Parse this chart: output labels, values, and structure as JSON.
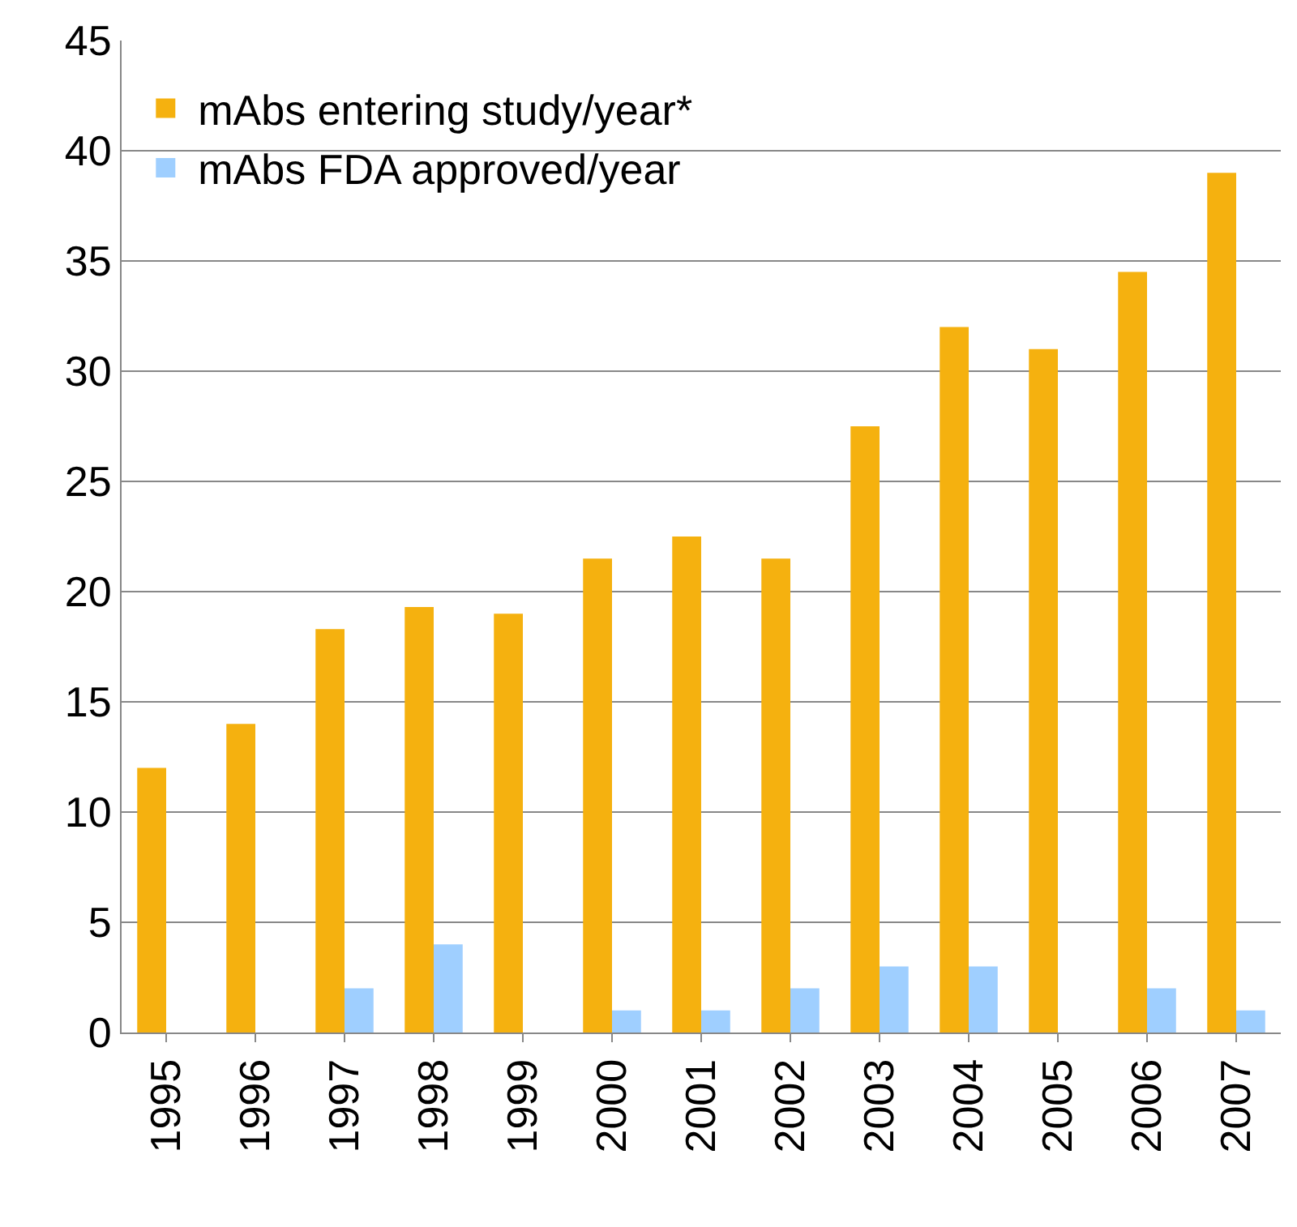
{
  "chart_data": {
    "type": "bar",
    "categories": [
      "1995",
      "1996",
      "1997",
      "1998",
      "1999",
      "2000",
      "2001",
      "2002",
      "2003",
      "2004",
      "2005",
      "2006",
      "2007"
    ],
    "series": [
      {
        "name": "mAbs entering study/year*",
        "color": "#f5b10f",
        "values": [
          12,
          14,
          18.3,
          19.3,
          19,
          21.5,
          22.5,
          21.5,
          27.5,
          32,
          31,
          34.5,
          39
        ]
      },
      {
        "name": "mAbs FDA approved/year",
        "color": "#9fcfff",
        "values": [
          0,
          0,
          2,
          4,
          0,
          1,
          1,
          2,
          3,
          3,
          0,
          2,
          1
        ]
      }
    ],
    "ylim": [
      0,
      45
    ],
    "yticks": [
      0,
      5,
      10,
      15,
      20,
      25,
      30,
      35,
      40,
      45
    ],
    "grid": "y",
    "legend": "top left"
  }
}
